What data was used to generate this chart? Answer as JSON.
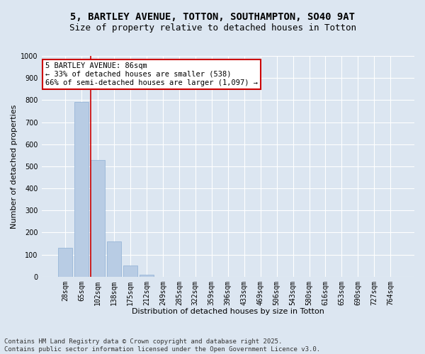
{
  "title_line1": "5, BARTLEY AVENUE, TOTTON, SOUTHAMPTON, SO40 9AT",
  "title_line2": "Size of property relative to detached houses in Totton",
  "xlabel": "Distribution of detached houses by size in Totton",
  "ylabel": "Number of detached properties",
  "categories": [
    "28sqm",
    "65sqm",
    "102sqm",
    "138sqm",
    "175sqm",
    "212sqm",
    "249sqm",
    "285sqm",
    "322sqm",
    "359sqm",
    "396sqm",
    "433sqm",
    "469sqm",
    "506sqm",
    "543sqm",
    "580sqm",
    "616sqm",
    "653sqm",
    "690sqm",
    "727sqm",
    "764sqm"
  ],
  "values": [
    130,
    790,
    530,
    160,
    50,
    10,
    0,
    0,
    0,
    0,
    0,
    0,
    0,
    0,
    0,
    0,
    0,
    0,
    0,
    0,
    0
  ],
  "bar_color": "#b8cce4",
  "bar_edge_color": "#8dafd4",
  "bg_color": "#dce6f1",
  "grid_color": "#ffffff",
  "vline_color": "#cc0000",
  "vline_x": 1.57,
  "annotation_line1": "5 BARTLEY AVENUE: 86sqm",
  "annotation_line2": "← 33% of detached houses are smaller (538)",
  "annotation_line3": "66% of semi-detached houses are larger (1,097) →",
  "annotation_box_color": "#ffffff",
  "annotation_box_edge": "#cc0000",
  "footer_line1": "Contains HM Land Registry data © Crown copyright and database right 2025.",
  "footer_line2": "Contains public sector information licensed under the Open Government Licence v3.0.",
  "ylim_max": 1000,
  "yticks": [
    0,
    100,
    200,
    300,
    400,
    500,
    600,
    700,
    800,
    900,
    1000
  ],
  "title_fontsize": 10,
  "subtitle_fontsize": 9,
  "axis_label_fontsize": 8,
  "tick_fontsize": 7,
  "annotation_fontsize": 7.5,
  "footer_fontsize": 6.5
}
